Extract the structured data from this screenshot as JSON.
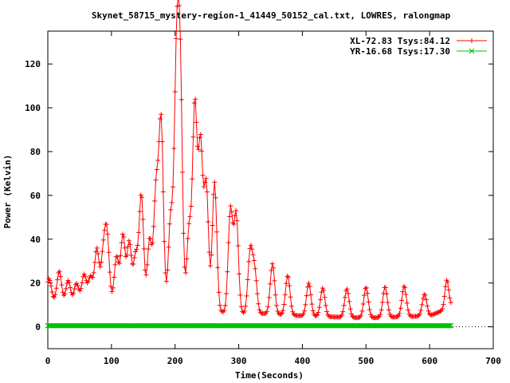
{
  "chart_data": {
    "type": "line",
    "title": "Skynet_58715_mystery-region-1_41449_50152_cal.txt, LOWRES, ralongmap",
    "xlabel": "Time(Seconds)",
    "ylabel": "Power (Kelvin)",
    "xlim": [
      0,
      700
    ],
    "ylim": [
      -10,
      135
    ],
    "xticks": [
      0,
      100,
      200,
      300,
      400,
      500,
      600,
      700
    ],
    "yticks": [
      0,
      20,
      40,
      60,
      80,
      100,
      120
    ],
    "grid": false,
    "legend_position": "top-right",
    "series": [
      {
        "name": "XL-72.83 Tsys:84.12",
        "color": "#ff0000",
        "marker": "plus",
        "t_start": 0,
        "t_step": 1.68,
        "baseline": [
          [
            0,
            12
          ],
          [
            30,
            11
          ],
          [
            50,
            12
          ],
          [
            100,
            11
          ],
          [
            200,
            9
          ],
          [
            260,
            7
          ],
          [
            300,
            6
          ],
          [
            340,
            6
          ],
          [
            400,
            5
          ],
          [
            500,
            4
          ],
          [
            600,
            5
          ],
          [
            625,
            8
          ],
          [
            635,
            10
          ]
        ],
        "peaks": [
          [
            2,
            10,
            3.5
          ],
          [
            18,
            14,
            3.5
          ],
          [
            32,
            10,
            3.5
          ],
          [
            45,
            8,
            3.5
          ],
          [
            57,
            12,
            3.5
          ],
          [
            67,
            11,
            3.5
          ],
          [
            77,
            24,
            3.5
          ],
          [
            87,
            20,
            3.5
          ],
          [
            93,
            30,
            3.5
          ],
          [
            108,
            21,
            3.5
          ],
          [
            118,
            31,
            3.5
          ],
          [
            128,
            28,
            3.5
          ],
          [
            138,
            22,
            3.5
          ],
          [
            147,
            50,
            3.5
          ],
          [
            160,
            30,
            3.5
          ],
          [
            170,
            52,
            3.5
          ],
          [
            178,
            84,
            3.5
          ],
          [
            193,
            40,
            3.5
          ],
          [
            202,
            102,
            3.5
          ],
          [
            208,
            103,
            3.5
          ],
          [
            222,
            36,
            3.5
          ],
          [
            231,
            93,
            3.5
          ],
          [
            240,
            75,
            3.5
          ],
          [
            249,
            57,
            3.5
          ],
          [
            262,
            59,
            3.5
          ],
          [
            287,
            47,
            3.5
          ],
          [
            296,
            45,
            3.5
          ],
          [
            318,
            28,
            3.5
          ],
          [
            325,
            19,
            3.5
          ],
          [
            353,
            23,
            3.5
          ],
          [
            377,
            18,
            3.5
          ],
          [
            410,
            15,
            3.5
          ],
          [
            432,
            13,
            3.5
          ],
          [
            470,
            13,
            3.5
          ],
          [
            500,
            14,
            3.5
          ],
          [
            530,
            14,
            3.5
          ],
          [
            560,
            14,
            3.5
          ],
          [
            592,
            10,
            3.5
          ],
          [
            627,
            13,
            3
          ]
        ]
      },
      {
        "name": "YR-16.68 Tsys:17.30",
        "color": "#00c000",
        "marker": "cross",
        "t_start": 0,
        "t_step": 1.68,
        "constant": 0.5
      }
    ],
    "t_end": 635
  }
}
